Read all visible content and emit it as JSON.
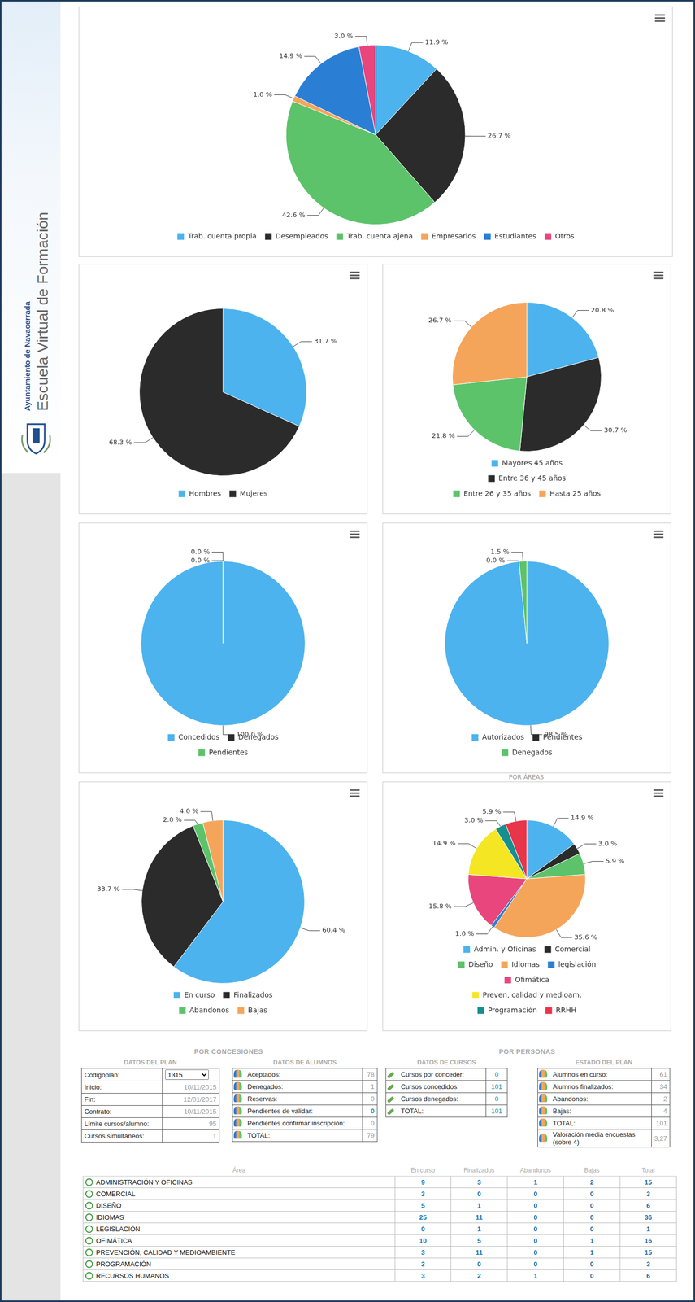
{
  "sidebar": {
    "organization": "Ayuntamiento de Navacerrada",
    "title": "Escuela Virtual de Formación"
  },
  "chart_data": [
    {
      "type": "pie",
      "categories": [
        "Trab. cuenta propia",
        "Desempleados",
        "Trab. cuenta ajena",
        "Empresarios",
        "Estudiantes",
        "Otros"
      ],
      "values": [
        11.9,
        26.7,
        42.6,
        1.0,
        14.9,
        3.0
      ],
      "value_labels": [
        "11.9 %",
        "26.7 %",
        "42.6 %",
        "1.0 %",
        "14.9 %",
        "3.0 %"
      ],
      "colors": [
        "#4cb3ee",
        "#2b2b2b",
        "#5cc36a",
        "#f5a55a",
        "#2a7fd5",
        "#e8467c"
      ],
      "legend": "bottom",
      "data_labels": true
    },
    {
      "type": "pie",
      "categories": [
        "Hombres",
        "Mujeres"
      ],
      "values": [
        31.7,
        68.3
      ],
      "value_labels": [
        "31.7 %",
        "68.3 %"
      ],
      "colors": [
        "#4cb3ee",
        "#2b2b2b"
      ],
      "legend": "bottom",
      "data_labels": true
    },
    {
      "type": "pie",
      "categories": [
        "Mayores 45 años",
        "Entre 36 y 45 años",
        "Entre 26 y 35 años",
        "Hasta 25 años"
      ],
      "values": [
        20.8,
        30.7,
        21.8,
        26.7
      ],
      "value_labels": [
        "20.8 %",
        "30.7 %",
        "21.8 %",
        "26.7 %"
      ],
      "colors": [
        "#4cb3ee",
        "#2b2b2b",
        "#5cc36a",
        "#f5a55a"
      ],
      "legend": "bottom",
      "data_labels": true
    },
    {
      "type": "pie",
      "categories": [
        "Concedidos",
        "Denegados",
        "Pendientes"
      ],
      "values": [
        100.0,
        0.0,
        0.0
      ],
      "value_labels": [
        "100.0 %",
        "0.0 %",
        "0.0 %"
      ],
      "colors": [
        "#4cb3ee",
        "#2b2b2b",
        "#5cc36a"
      ],
      "legend": "bottom",
      "data_labels": true
    },
    {
      "type": "pie",
      "categories": [
        "Autorizados",
        "Pendientes",
        "Denegados"
      ],
      "values": [
        98.5,
        0.0,
        1.5
      ],
      "value_labels": [
        "98.5 %",
        "0.0 %",
        "1.5 %"
      ],
      "colors": [
        "#4cb3ee",
        "#2b2b2b",
        "#5cc36a"
      ],
      "legend": "bottom",
      "data_labels": true
    },
    {
      "type": "pie",
      "categories": [
        "En curso",
        "Finalizados",
        "Abandonos",
        "Bajas"
      ],
      "values": [
        60.4,
        33.7,
        2.0,
        4.0
      ],
      "value_labels": [
        "60.4 %",
        "33.7 %",
        "2.0 %",
        "4.0 %"
      ],
      "colors": [
        "#4cb3ee",
        "#2b2b2b",
        "#5cc36a",
        "#f5a55a"
      ],
      "legend": "bottom",
      "data_labels": true
    },
    {
      "type": "pie",
      "title": "POR ÁREAS",
      "categories": [
        "Admin. y Oficinas",
        "Comercial",
        "Diseño",
        "Idiomas",
        "legislación",
        "Ofimática",
        "Preven, calidad y medioam.",
        "Programación",
        "RRHH"
      ],
      "values": [
        14.9,
        3.0,
        5.9,
        35.6,
        1.0,
        15.8,
        14.9,
        3.0,
        5.9
      ],
      "value_labels": [
        "14.9 %",
        "3.0 %",
        "5.9 %",
        "35.6 %",
        "1.0 %",
        "15.8 %",
        "14.9 %",
        "3.0 %",
        "5.9 %"
      ],
      "colors": [
        "#4cb3ee",
        "#2b2b2b",
        "#5cc36a",
        "#f5a55a",
        "#2a7fd5",
        "#e8467c",
        "#f5e623",
        "#168f8f",
        "#e8354a"
      ],
      "legend": "bottom",
      "data_labels": true
    }
  ],
  "summary": [
    {
      "title": "POR CONCESIONES",
      "tables": [
        {
          "title": "DATOS DEL PLAN",
          "rows": [
            [
              "Codigoplan:",
              "1315"
            ],
            [
              "Inicio:",
              "10/11/2015"
            ],
            [
              "Fin:",
              "12/01/2017"
            ],
            [
              "Contrato:",
              "10/11/2015"
            ],
            [
              "Límite cursos/alumno:",
              95
            ],
            [
              "Cursos simultáneos:",
              1
            ]
          ]
        },
        {
          "title": "DATOS DE ALUMNOS",
          "rows": [
            [
              "Aceptados:",
              78
            ],
            [
              "Denegados:",
              1
            ],
            [
              "Reservas:",
              0
            ],
            [
              "Pendientes de validar:",
              0
            ],
            [
              "Pendientes confirmar inscripción:",
              0
            ],
            [
              "TOTAL:",
              79
            ]
          ]
        }
      ]
    },
    {
      "title": "POR PERSONAS",
      "tables": [
        {
          "title": "DATOS DE CURSOS",
          "rows": [
            [
              "Cursos por conceder:",
              0
            ],
            [
              "Cursos concedidos:",
              101
            ],
            [
              "Cursos denegados:",
              0
            ],
            [
              "TOTAL:",
              101
            ]
          ]
        },
        {
          "title": "ESTADO DEL PLAN",
          "rows": [
            [
              "Alumnos en curso:",
              61
            ],
            [
              "Alumnos finalizados:",
              34
            ],
            [
              "Abandonos:",
              2
            ],
            [
              "Bajas:",
              4
            ],
            [
              "TOTAL:",
              101
            ],
            [
              "Valoración media encuestas (sobre 4)",
              "3,27"
            ]
          ]
        }
      ]
    }
  ],
  "area_table": {
    "header": [
      "Área",
      "En curso",
      "Finalizados",
      "Abandonos",
      "Bajas",
      "Total"
    ],
    "rows": [
      [
        "ADMINISTRACIÓN Y OFICINAS",
        9,
        3,
        1,
        2,
        15
      ],
      [
        "COMERCIAL",
        3,
        0,
        0,
        0,
        3
      ],
      [
        "DISEÑO",
        5,
        1,
        0,
        0,
        6
      ],
      [
        "IDIOMAS",
        25,
        11,
        0,
        0,
        36
      ],
      [
        "LEGISLACIÓN",
        0,
        1,
        0,
        0,
        1
      ],
      [
        "OFIMÁTICA",
        10,
        5,
        0,
        1,
        16
      ],
      [
        "PREVENCIÓN, CALIDAD Y MEDIOAMBIENTE",
        3,
        11,
        0,
        1,
        15
      ],
      [
        "PROGRAMACIÓN",
        3,
        0,
        0,
        0,
        3
      ],
      [
        "RECURSOS HUMANOS",
        3,
        2,
        1,
        0,
        6
      ]
    ]
  }
}
